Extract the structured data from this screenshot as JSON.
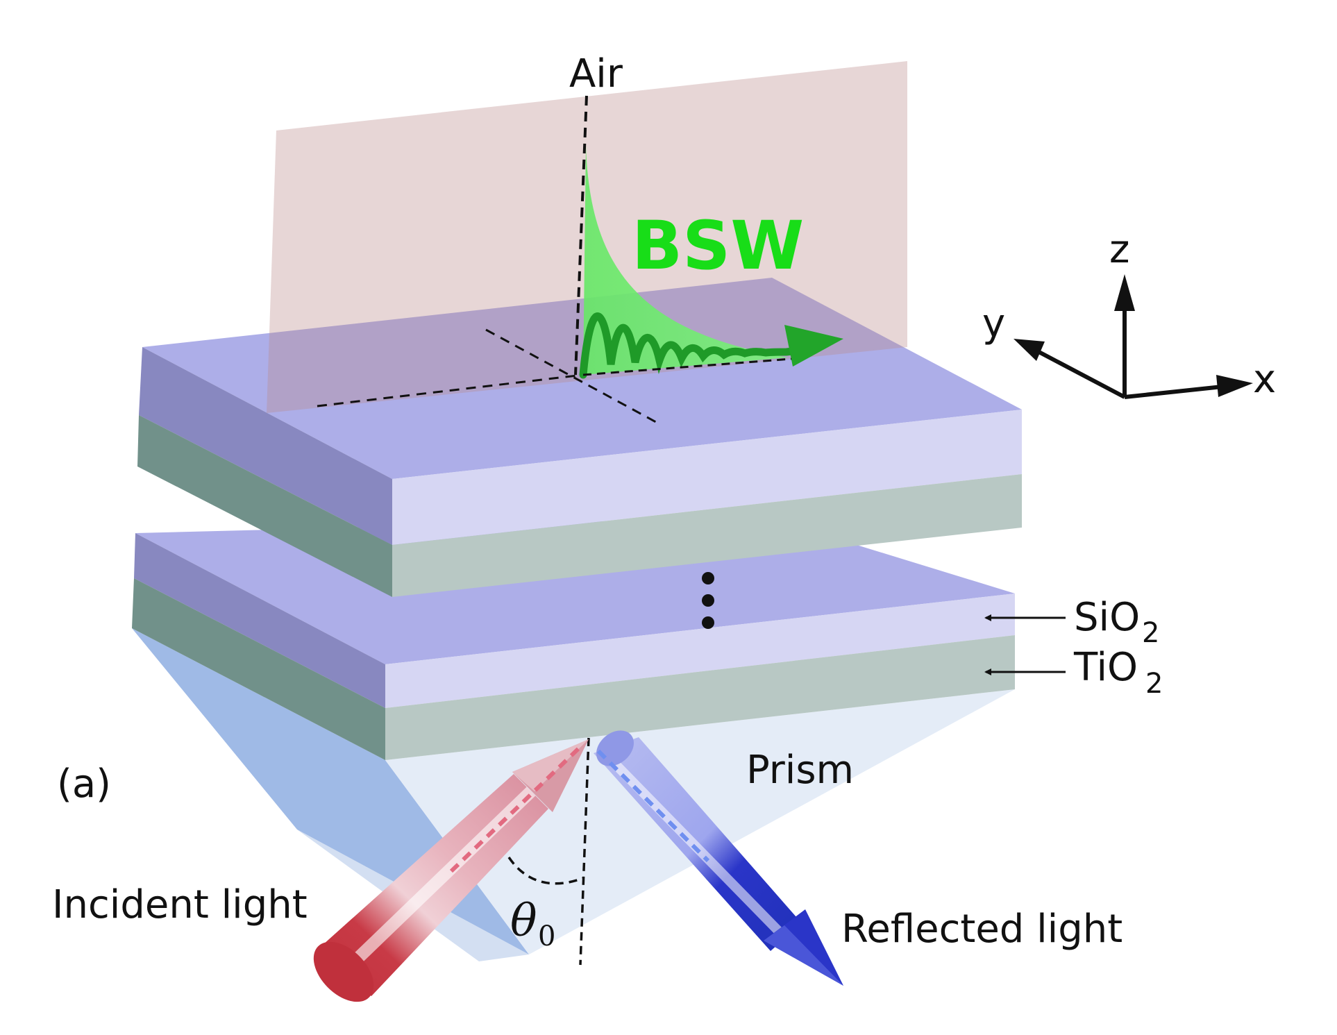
{
  "figure": {
    "panel_label": "(a)",
    "labels": {
      "air": "Air",
      "bsw": "BSW",
      "prism": "Prism",
      "incident": "Incident light",
      "reflected": "Reflected light",
      "angle": "θ",
      "angle_sub": "0"
    },
    "layers": {
      "sio2": "SiO",
      "sio2_sub": "2",
      "tio2": "TiO",
      "tio2_sub": "2"
    },
    "axes": {
      "x": "x",
      "y": "y",
      "z": "z"
    },
    "colors": {
      "sio2_top": "#adaee8",
      "sio2_front": "#d6d6f3",
      "tio2_front": "#b8c8c4",
      "bsw_green": "#18dd18",
      "incident_red": "#c0303c",
      "reflected_blue": "#2a35c8"
    }
  }
}
